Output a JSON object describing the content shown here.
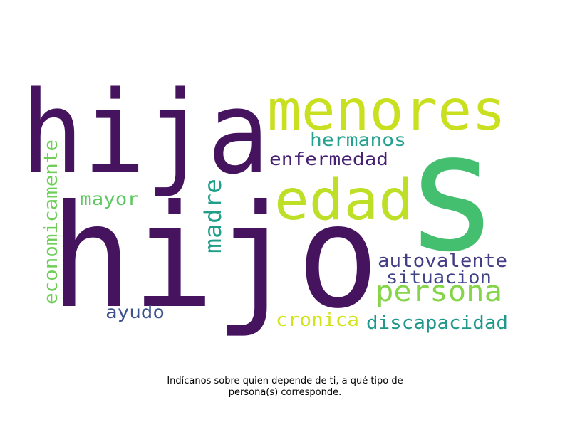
{
  "words": [
    {
      "text": "hija",
      "color": "#46135f"
    },
    {
      "text": "hijo",
      "color": "#46135f"
    },
    {
      "text": "s",
      "color": "#44bf70"
    },
    {
      "text": "menores",
      "color": "#c8e020"
    },
    {
      "text": "edad",
      "color": "#bddf26"
    },
    {
      "text": "hermanos",
      "color": "#25a18e"
    },
    {
      "text": "enfermedad",
      "color": "#482173"
    },
    {
      "text": "economicamente",
      "color": "#6ece58"
    },
    {
      "text": "mayor",
      "color": "#5ec962"
    },
    {
      "text": "madre",
      "color": "#1f9e89"
    },
    {
      "text": "autovalente",
      "color": "#433e85"
    },
    {
      "text": "situacion",
      "color": "#414487"
    },
    {
      "text": "persona",
      "color": "#86d549"
    },
    {
      "text": "ayudo",
      "color": "#3b528b"
    },
    {
      "text": "cronica",
      "color": "#d2e21b"
    },
    {
      "text": "discapacidad",
      "color": "#1f988b"
    }
  ],
  "caption": {
    "line1": "Indícanos sobre quien depende de ti, a qué tipo de",
    "line2": "persona(s) corresponde."
  }
}
